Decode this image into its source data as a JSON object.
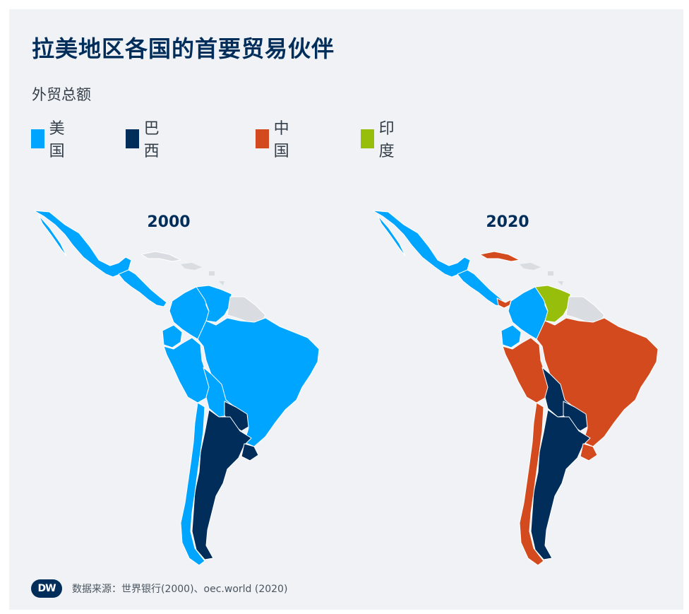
{
  "title": "拉美地区各国的首要贸易伙伴",
  "subtitle": "外贸总额",
  "legend": [
    {
      "label": "美国",
      "color": "#00a5ff"
    },
    {
      "label": "巴西",
      "color": "#002d5a"
    },
    {
      "label": "中国",
      "color": "#d44a1f"
    },
    {
      "label": "印度",
      "color": "#96be0a"
    }
  ],
  "maps": [
    {
      "year": "2000",
      "countries": {
        "mexico": "美国",
        "central_america": "美国",
        "colombia": "美国",
        "venezuela": "美国",
        "ecuador": "美国",
        "peru": "美国",
        "brazil": "美国",
        "bolivia": "美国",
        "paraguay": "巴西",
        "argentina": "巴西",
        "uruguay": "巴西",
        "chile": "美国",
        "cuba": "none",
        "guianas": "none"
      }
    },
    {
      "year": "2020",
      "countries": {
        "mexico": "美国",
        "central_america": "美国",
        "panama": "中国",
        "cuba": "中国",
        "colombia": "美国",
        "venezuela": "印度",
        "ecuador": "美国",
        "peru": "中国",
        "brazil": "中国",
        "bolivia": "巴西",
        "paraguay": "巴西",
        "argentina": "巴西",
        "uruguay": "中国",
        "chile": "中国",
        "guianas": "none"
      }
    }
  ],
  "colors": {
    "none": "#d9dde2",
    "background": "#f0f2f5",
    "border": "#ffffff"
  },
  "footer": {
    "logo": "DW",
    "source": "数据来源：世界银行(2000)、oec.world (2020)"
  }
}
